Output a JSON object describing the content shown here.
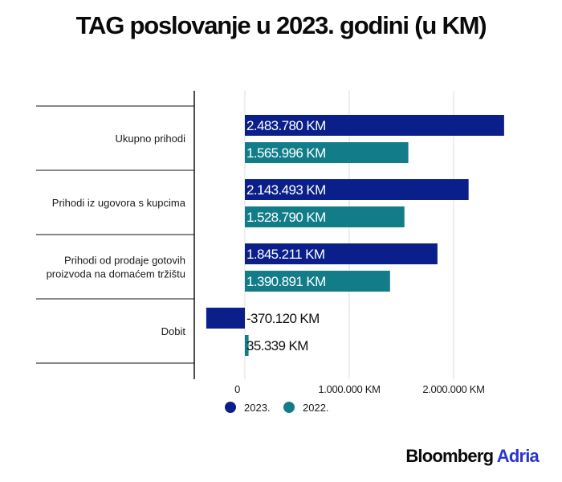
{
  "chart_data": {
    "type": "bar",
    "orientation": "horizontal",
    "title": "TAG poslovanje u  2023. godini (u KM)",
    "categories": [
      [
        "Ukupno prihodi"
      ],
      [
        "Prihodi iz ugovora s kupcima"
      ],
      [
        "Prihodi od prodaje gotovih",
        "proizvoda na domaćem tržištu"
      ],
      [
        "Dobit"
      ]
    ],
    "series": [
      {
        "name": "2023.",
        "color": "#0b1f8a",
        "values": [
          2483780,
          2143493,
          1845211,
          -370120
        ],
        "labels": [
          "2.483.780 KM",
          "2.143.493 KM",
          "1.845.211 KM",
          "-370.120 KM"
        ]
      },
      {
        "name": "2022.",
        "color": "#127d88",
        "values": [
          1565996,
          1528790,
          1390891,
          35339
        ],
        "labels": [
          "1.565.996 KM",
          "1.528.790 KM",
          "1.390.891 KM",
          "35.339 KM"
        ]
      }
    ],
    "x_ticks": [
      {
        "value": 0,
        "label": "0"
      },
      {
        "value": 1000000,
        "label": "1.000.000 KM"
      },
      {
        "value": 2000000,
        "label": "2.000.000 KM"
      }
    ],
    "grid": "vertical",
    "legend_position": "bottom-center"
  },
  "branding": {
    "main": "Bloomberg",
    "accent": "Adria",
    "accent_color": "#2a36c8"
  }
}
